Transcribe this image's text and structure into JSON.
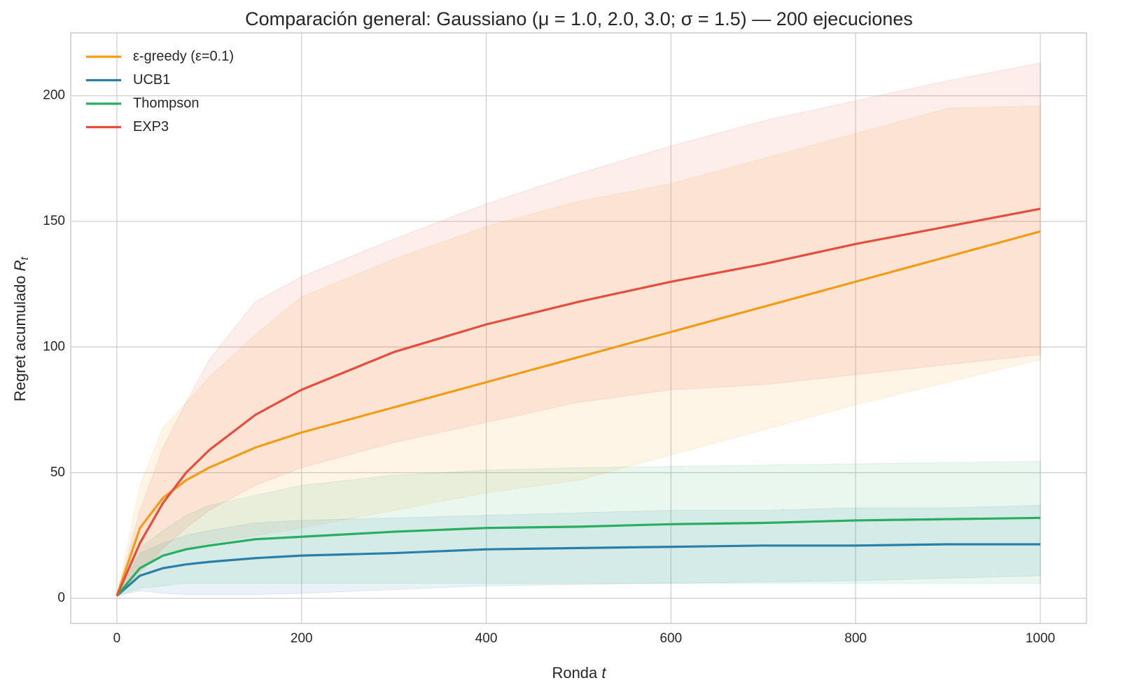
{
  "chart_data": {
    "type": "line",
    "title": "Comparación general: Gaussiano (μ = 1.0, 2.0, 3.0; σ = 1.5) — 200 ejecuciones",
    "xlabel": "Ronda",
    "xlabel_symbol": "t",
    "ylabel": "Regret acumulado",
    "ylabel_symbol": "R",
    "ylabel_subscript": "t",
    "x": [
      0,
      25,
      50,
      75,
      100,
      150,
      200,
      300,
      400,
      500,
      600,
      700,
      800,
      900,
      1000
    ],
    "xlim": [
      -50,
      1050
    ],
    "xticks": [
      0,
      200,
      400,
      600,
      800,
      1000
    ],
    "ylim": [
      -10,
      225
    ],
    "yticks": [
      0,
      50,
      100,
      150,
      200
    ],
    "grid": true,
    "legend": "upper-left",
    "series": [
      {
        "name": "ε-greedy (ε=0.1)",
        "color": "#f39c12",
        "values": [
          1,
          28,
          40,
          47,
          52,
          60,
          66,
          76,
          86,
          96,
          106,
          116,
          126,
          136,
          146
        ],
        "upper": [
          1,
          45,
          68,
          78,
          88,
          105,
          120,
          135,
          148,
          158,
          165,
          175,
          185,
          195,
          196
        ],
        "lower": [
          1,
          13,
          18,
          20,
          22,
          25,
          28,
          35,
          42,
          47,
          57,
          67,
          77,
          86,
          95
        ]
      },
      {
        "name": "UCB1",
        "color": "#2a7fa8",
        "values": [
          1,
          9,
          12,
          13.5,
          14.5,
          16,
          17,
          18,
          19.5,
          20,
          20.5,
          21,
          21,
          21.5,
          21.5
        ],
        "upper": [
          1,
          18,
          22,
          25,
          27,
          30,
          31,
          32,
          33,
          34,
          35,
          35,
          36,
          36,
          37
        ],
        "lower": [
          1,
          3,
          2,
          1.5,
          1.5,
          1.5,
          2,
          3.5,
          5,
          5.5,
          6,
          6.5,
          7,
          8,
          9
        ]
      },
      {
        "name": "Thompson",
        "color": "#27ae60",
        "values": [
          1,
          12,
          17,
          19.5,
          21,
          23.5,
          24.5,
          26.5,
          28,
          28.5,
          29.5,
          30,
          31,
          31.5,
          32
        ],
        "upper": [
          1,
          20,
          27,
          33,
          37,
          41,
          45,
          49,
          51,
          52,
          52.5,
          53,
          53.5,
          54,
          54.5
        ],
        "lower": [
          1,
          4,
          5,
          6,
          6,
          6,
          6,
          6,
          6,
          6,
          6,
          6,
          6,
          6,
          6
        ]
      },
      {
        "name": "EXP3",
        "color": "#e74c3c",
        "values": [
          1,
          22,
          38,
          50,
          59,
          73,
          83,
          98,
          109,
          118,
          126,
          133,
          141,
          148,
          155
        ],
        "upper": [
          1,
          35,
          60,
          78,
          95,
          118,
          128,
          143,
          157,
          169,
          180,
          190,
          198,
          206,
          213
        ],
        "lower": [
          1,
          10,
          20,
          28,
          35,
          45,
          52,
          62,
          70,
          78,
          83,
          85,
          89,
          93,
          97
        ]
      }
    ]
  }
}
